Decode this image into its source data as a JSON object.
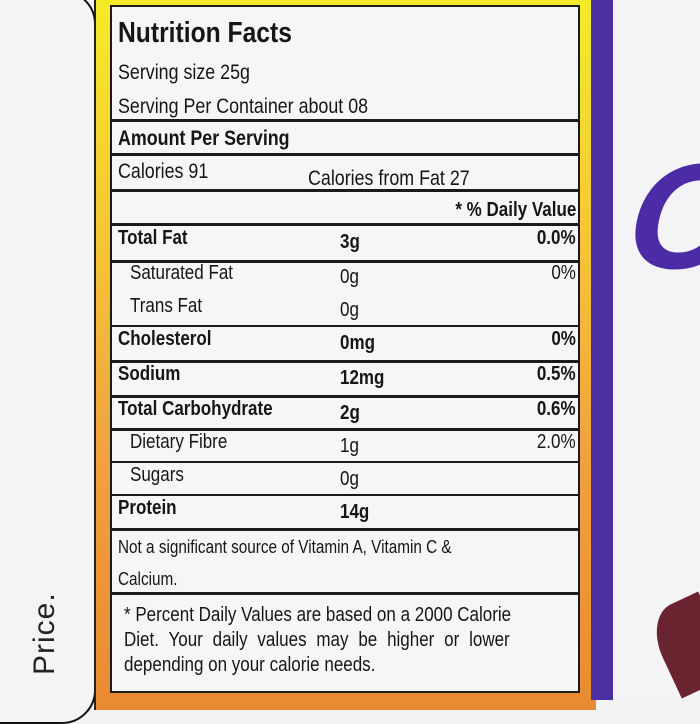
{
  "side_panel": {
    "price_label": "Price."
  },
  "label": {
    "title": "Nutrition Facts",
    "serving_size": "Serving size  25g",
    "servings_per_container": "Serving Per Container about  08",
    "amount_per_serving": "Amount Per Serving",
    "calories": "Calories    91",
    "calories_from_fat": "Calories from Fat  27",
    "daily_value_header": "* % Daily Value",
    "rows": [
      {
        "name": "Total Fat",
        "amount": "3g",
        "dv": "0.0%",
        "bold": true
      },
      {
        "name": "Saturated Fat",
        "amount": "0g",
        "dv": "0%",
        "bold": false
      },
      {
        "name": "Trans Fat",
        "amount": "0g",
        "dv": "",
        "bold": false
      },
      {
        "name": "Cholesterol",
        "amount": "0mg",
        "dv": "0%",
        "bold": true
      },
      {
        "name": "Sodium",
        "amount": "12mg",
        "dv": "0.5%",
        "bold": true
      },
      {
        "name": "Total Carbohydrate",
        "amount": "2g",
        "dv": "0.6%",
        "bold": true
      },
      {
        "name": "Dietary Fibre",
        "amount": "1g",
        "dv": "2.0%",
        "bold": false
      },
      {
        "name": "Sugars",
        "amount": "0g",
        "dv": "",
        "bold": false
      },
      {
        "name": "Protein",
        "amount": "14g",
        "dv": "",
        "bold": true
      }
    ],
    "vitamins_note_1": "Not a significant source of Vitamin A, Vitamin C &",
    "vitamins_note_2": "Calcium.",
    "footnote_1": "* Percent Daily Values are based on a 2000 Calorie",
    "footnote_2": "Diet. Your daily values may be higher or lower",
    "footnote_3": "depending on your calorie needs."
  },
  "colors": {
    "purple": "#4a2fa0",
    "yellow": "#f4ec2a",
    "orange": "#ea8a30"
  }
}
